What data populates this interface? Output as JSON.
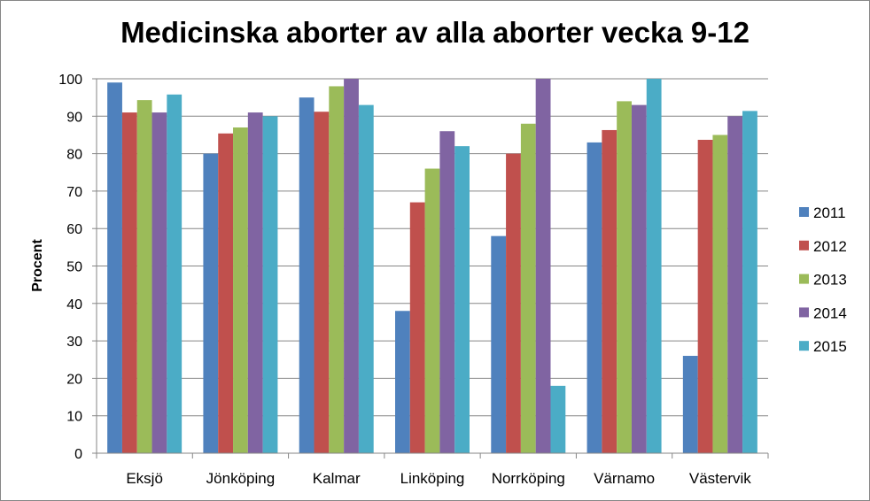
{
  "chart_data": {
    "type": "bar",
    "title": "Medicinska aborter av alla aborter vecka 9-12",
    "xlabel": "",
    "ylabel": "Procent",
    "ylim": [
      0,
      100
    ],
    "yticks": [
      0,
      10,
      20,
      30,
      40,
      50,
      60,
      70,
      80,
      90,
      100
    ],
    "grid": true,
    "legend_position": "right",
    "categories": [
      "Eksjö",
      "Jönköping",
      "Kalmar",
      "Linköping",
      "Norrköping",
      "Värnamo",
      "Västervik"
    ],
    "series": [
      {
        "name": "2011",
        "color": "#4f81bd",
        "values": [
          99,
          80,
          95,
          38,
          58,
          83,
          26
        ]
      },
      {
        "name": "2012",
        "color": "#c0504d",
        "values": [
          91,
          85.4,
          91.2,
          67,
          80,
          86.3,
          83.7
        ]
      },
      {
        "name": "2013",
        "color": "#9bbb59",
        "values": [
          94.3,
          87,
          98,
          76,
          88,
          94,
          85
        ]
      },
      {
        "name": "2014",
        "color": "#8064a2",
        "values": [
          91,
          91,
          100,
          86,
          100,
          93,
          90
        ]
      },
      {
        "name": "2015",
        "color": "#4bacc6",
        "values": [
          95.8,
          90,
          93,
          82,
          18,
          100,
          91.4
        ]
      }
    ]
  }
}
